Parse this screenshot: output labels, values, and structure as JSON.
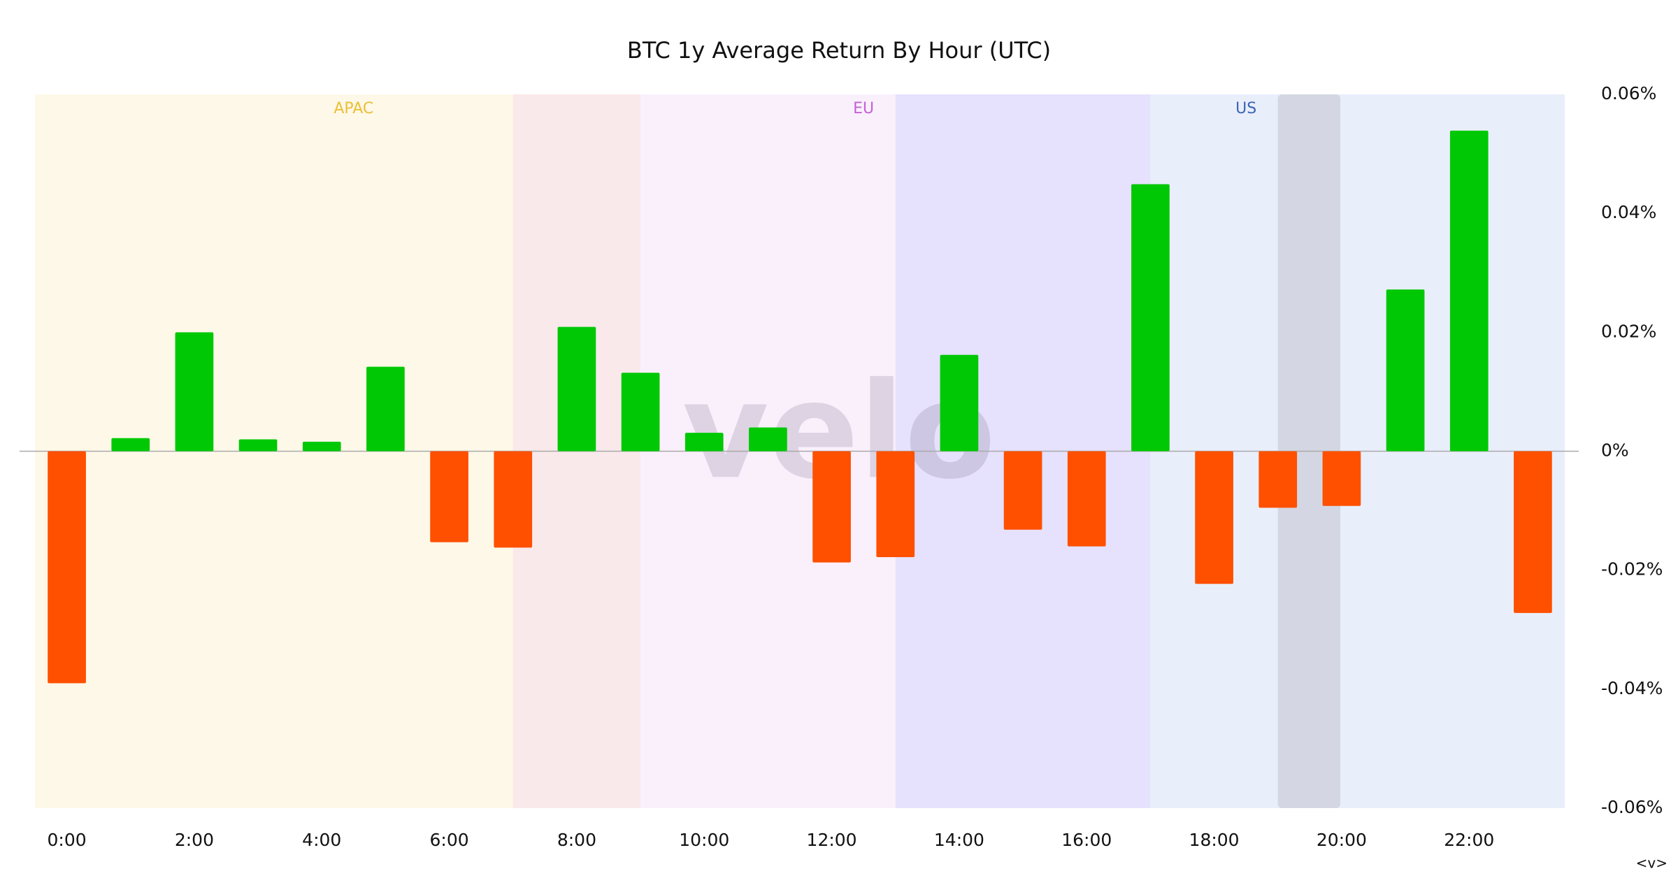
{
  "chart_data": {
    "type": "bar",
    "title": "BTC 1y Average Return By Hour (UTC)",
    "watermark": "velo",
    "corner_mark": "<v>",
    "categories": [
      "0:00",
      null,
      "2:00",
      null,
      "4:00",
      null,
      "6:00",
      null,
      "8:00",
      null,
      "10:00",
      null,
      "12:00",
      null,
      "14:00",
      null,
      "16:00",
      null,
      "18:00",
      null,
      "20:00",
      null,
      "22:00",
      null
    ],
    "values": [
      -0.039,
      0.0022,
      0.02,
      0.002,
      0.0016,
      0.0142,
      -0.0153,
      -0.0162,
      0.0209,
      0.0132,
      0.0031,
      0.004,
      -0.0187,
      -0.0178,
      0.0162,
      -0.0132,
      -0.016,
      0.0449,
      -0.0223,
      -0.0095,
      -0.0092,
      0.0272,
      0.0539,
      -0.0272
    ],
    "positive_color": "#00c805",
    "negative_color": "#ff5000",
    "sessions": [
      {
        "name": "APAC",
        "color": "#ecbf35"
      },
      {
        "name": "EU",
        "color": "#c462d6"
      },
      {
        "name": "US",
        "color": "#3a66b4"
      }
    ],
    "ylim": [
      -0.06,
      0.06
    ],
    "yticks": [
      {
        "value": -0.06,
        "label": "-0.06%"
      },
      {
        "value": -0.04,
        "label": "-0.04%"
      },
      {
        "value": -0.02,
        "label": "-0.02%"
      },
      {
        "value": 0,
        "label": "0%"
      },
      {
        "value": 0.02,
        "label": "0.02%"
      },
      {
        "value": 0.04,
        "label": "0.04%"
      },
      {
        "value": 0.06,
        "label": "0.06%"
      }
    ],
    "y_axis_side": "right",
    "grid": false
  }
}
